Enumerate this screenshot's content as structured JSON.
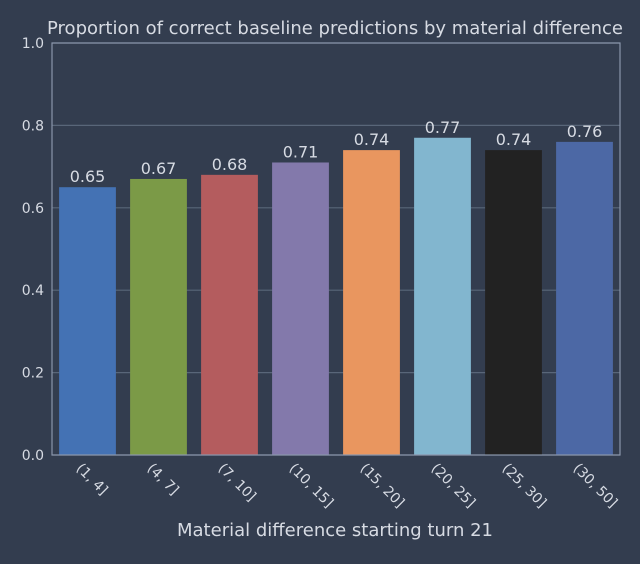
{
  "chart_data": {
    "type": "bar",
    "title": "Proportion of correct baseline predictions by material difference",
    "xlabel": "Material difference starting turn 21",
    "ylabel": "",
    "categories": [
      "(1, 4]",
      "(4, 7]",
      "(7, 10]",
      "(10, 15]",
      "(15, 20]",
      "(20, 25]",
      "(25, 30]",
      "(30, 50]"
    ],
    "values": [
      0.65,
      0.67,
      0.68,
      0.71,
      0.74,
      0.77,
      0.74,
      0.76
    ],
    "value_labels": [
      "0.65",
      "0.67",
      "0.68",
      "0.71",
      "0.74",
      "0.77",
      "0.74",
      "0.76"
    ],
    "ylim": [
      0.0,
      1.0
    ],
    "yticks": [
      "0.0",
      "0.2",
      "0.4",
      "0.6",
      "0.8",
      "1.0"
    ],
    "ytick_values": [
      0.0,
      0.2,
      0.4,
      0.6,
      0.8,
      1.0
    ],
    "grid": true,
    "bar_colors": [
      "#4472b4",
      "#7b9a47",
      "#b45c5e",
      "#8379ab",
      "#e9965f",
      "#82b6cf",
      "#222222",
      "#4c68a5"
    ]
  },
  "theme": {
    "background": "#333d4f",
    "text": "#d7dbe3",
    "grid": "#596679",
    "frame": "#8a96ac"
  }
}
